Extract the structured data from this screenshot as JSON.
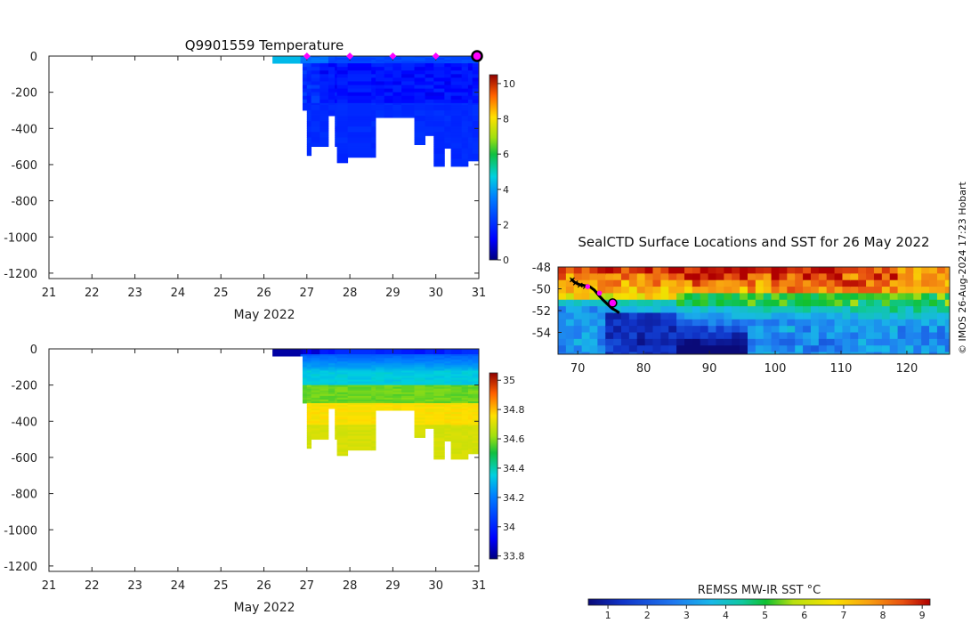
{
  "credit": "© IMOS 26-Aug-2024 17:23 Hobart",
  "colors": {
    "sst_stops": [
      "#0a0a78",
      "#1034c8",
      "#1f78f0",
      "#18b8e8",
      "#10c8a0",
      "#10c030",
      "#b8e010",
      "#f8e000",
      "#f8a010",
      "#e85010",
      "#b00000"
    ]
  },
  "chart_data": [
    {
      "type": "heatmap",
      "title": "Q9901559  Temperature",
      "xlabel": "May 2022",
      "ylabel": "",
      "xlim": [
        21,
        31
      ],
      "ylim": [
        -1230,
        0
      ],
      "xticks": [
        21,
        22,
        23,
        24,
        25,
        26,
        27,
        28,
        29,
        30,
        31
      ],
      "yticks": [
        0,
        -200,
        -400,
        -600,
        -800,
        -1000,
        -1200
      ],
      "profile_x": [
        26.2,
        26.6,
        26.85,
        26.9,
        27.0,
        27.1,
        27.3,
        27.5,
        27.65,
        27.7,
        27.95,
        28.5,
        28.6,
        28.8,
        29.0,
        29.2,
        29.5,
        29.75,
        29.95,
        30.2,
        30.35,
        30.6,
        30.75,
        30.85,
        31.0
      ],
      "profile_depth": [
        40,
        40,
        40,
        300,
        550,
        500,
        500,
        330,
        500,
        590,
        560,
        560,
        340,
        340,
        340,
        340,
        490,
        440,
        610,
        510,
        610,
        610,
        575,
        575,
        330
      ],
      "colorbar": {
        "min": 0,
        "max": 10.5,
        "ticks": [
          0,
          2,
          4,
          6,
          8,
          10
        ]
      },
      "markers_x": [
        27,
        28,
        29,
        30
      ],
      "current_x": 31
    },
    {
      "type": "heatmap",
      "title": "",
      "xlabel": "May 2022",
      "ylabel": "",
      "xlim": [
        21,
        31
      ],
      "ylim": [
        -1230,
        0
      ],
      "xticks": [
        21,
        22,
        23,
        24,
        25,
        26,
        27,
        28,
        29,
        30,
        31
      ],
      "yticks": [
        0,
        -200,
        -400,
        -600,
        -800,
        -1000,
        -1200
      ],
      "colorbar": {
        "min": 33.78,
        "max": 35.05,
        "ticks": [
          33.8,
          34,
          34.2,
          34.4,
          34.6,
          34.8,
          35
        ]
      }
    },
    {
      "type": "heatmap",
      "title": "SealCTD Surface Locations and SST for 26 May 2022",
      "xlabel": "",
      "ylabel": "",
      "xlim": [
        67,
        126.5
      ],
      "ylim": [
        -56,
        -48
      ],
      "xticks": [
        70,
        80,
        90,
        100,
        110,
        120
      ],
      "yticks": [
        -48,
        -50,
        -52,
        -54
      ],
      "track_lon": [
        69.0,
        69.5,
        70.2,
        71.0,
        71.8,
        72.5,
        73.2,
        73.8,
        74.5,
        75.2,
        75.8,
        76.3
      ],
      "track_lat": [
        -49.1,
        -49.4,
        -49.6,
        -49.7,
        -49.8,
        -50.1,
        -50.6,
        -51.0,
        -51.4,
        -51.8,
        -52.0,
        -52.2
      ],
      "markers_lon": [
        71.5,
        73.3
      ],
      "markers_lat": [
        -49.8,
        -50.4
      ],
      "current_lon": 75.3,
      "current_lat": -51.3,
      "colorbar": {
        "label": "REMSS MW-IR SST °C",
        "min": 0.5,
        "max": 9.2,
        "ticks": [
          1,
          2,
          3,
          4,
          5,
          6,
          7,
          8,
          9
        ]
      }
    }
  ]
}
